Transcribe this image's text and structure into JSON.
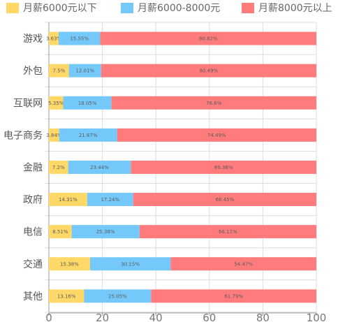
{
  "colors": {
    "series": [
      "#ffd868",
      "#75c9fa",
      "#ff7b7c"
    ],
    "axis": "#999999",
    "grid": "#dddddd",
    "category_text": "#555555",
    "tick_text": "#777777",
    "data_label": "#5b5b5b"
  },
  "chart_data": {
    "type": "bar",
    "orientation": "horizontal",
    "stacked": true,
    "categories": [
      "游戏",
      "外包",
      "互联网",
      "电子商务",
      "金融",
      "政府",
      "电信",
      "交通",
      "其他"
    ],
    "series": [
      {
        "name": "月薪6000元以下",
        "values": [
          3.63,
          7.5,
          5.35,
          3.84,
          7.2,
          14.31,
          8.51,
          15.38,
          13.16
        ],
        "labels": [
          "3.63%",
          "7.5%",
          "5.35%",
          "3.84%",
          "7.2%",
          "14.31%",
          "8.51%",
          "15.38%",
          "13.16%"
        ]
      },
      {
        "name": "月薪6000-8000元",
        "values": [
          15.55,
          12.01,
          18.05,
          21.67,
          23.44,
          17.24,
          25.38,
          30.15,
          25.05
        ],
        "labels": [
          "15.55%",
          "12.01%",
          "18.05%",
          "21.67%",
          "23.44%",
          "17.24%",
          "25.38%",
          "30.15%",
          "25.05%"
        ]
      },
      {
        "name": "月薪8000元以上",
        "values": [
          80.82,
          80.49,
          76.6,
          74.49,
          69.36,
          68.45,
          66.11,
          54.47,
          61.79
        ],
        "labels": [
          "80.82%",
          "80.49%",
          "76.6%",
          "74.49%",
          "69.36%",
          "68.45%",
          "66.11%",
          "54.47%",
          "61.79%"
        ]
      }
    ],
    "xlim": [
      0,
      100
    ],
    "xticks": [
      "0",
      "20",
      "40",
      "60",
      "80",
      "100"
    ],
    "grid": true,
    "legend_position": "top"
  }
}
